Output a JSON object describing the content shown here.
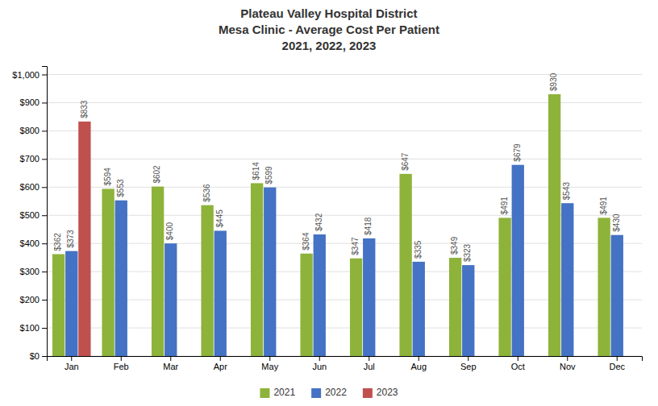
{
  "chart_data": {
    "type": "bar",
    "title": "Plateau Valley Hospital District\nMesa Clinic  - Average Cost Per Patient\n2021, 2022, 2023",
    "categories": [
      "Jan",
      "Feb",
      "Mar",
      "Apr",
      "May",
      "Jun",
      "Jul",
      "Aug",
      "Sep",
      "Oct",
      "Nov",
      "Dec"
    ],
    "series": [
      {
        "name": "2021",
        "color": "#8db33a",
        "values": [
          362,
          594,
          602,
          536,
          614,
          364,
          347,
          647,
          349,
          491,
          930,
          491
        ],
        "value_labels": [
          "$362",
          "$594",
          "$602",
          "$536",
          "$614",
          "$364",
          "$347",
          "$647",
          "$349",
          "$491",
          "$930",
          "$491"
        ]
      },
      {
        "name": "2022",
        "color": "#4472c4",
        "values": [
          373,
          553,
          400,
          445,
          599,
          432,
          418,
          335,
          323,
          679,
          543,
          430
        ],
        "value_labels": [
          "$373",
          "$553",
          "$400",
          "$445",
          "$599",
          "$432",
          "$418",
          "$335",
          "$323",
          "$679",
          "$543",
          "$430"
        ]
      },
      {
        "name": "2023",
        "color": "#c0504d",
        "values": [
          833,
          null,
          null,
          null,
          null,
          null,
          null,
          null,
          null,
          null,
          null,
          null
        ],
        "value_labels": [
          "$833",
          null,
          null,
          null,
          null,
          null,
          null,
          null,
          null,
          null,
          null,
          null
        ]
      }
    ],
    "ylim": [
      0,
      1030
    ],
    "yticks": [
      {
        "value": 0,
        "label": "$0"
      },
      {
        "value": 100,
        "label": "$100"
      },
      {
        "value": 200,
        "label": "$200"
      },
      {
        "value": 300,
        "label": "$300"
      },
      {
        "value": 400,
        "label": "$400"
      },
      {
        "value": 500,
        "label": "$500"
      },
      {
        "value": 600,
        "label": "$600"
      },
      {
        "value": 700,
        "label": "$700"
      },
      {
        "value": 800,
        "label": "$800"
      },
      {
        "value": 900,
        "label": "$900"
      },
      {
        "value": 1000,
        "label": "$1,000"
      }
    ],
    "grid": true,
    "legend": "bottom",
    "data_labels": true
  }
}
